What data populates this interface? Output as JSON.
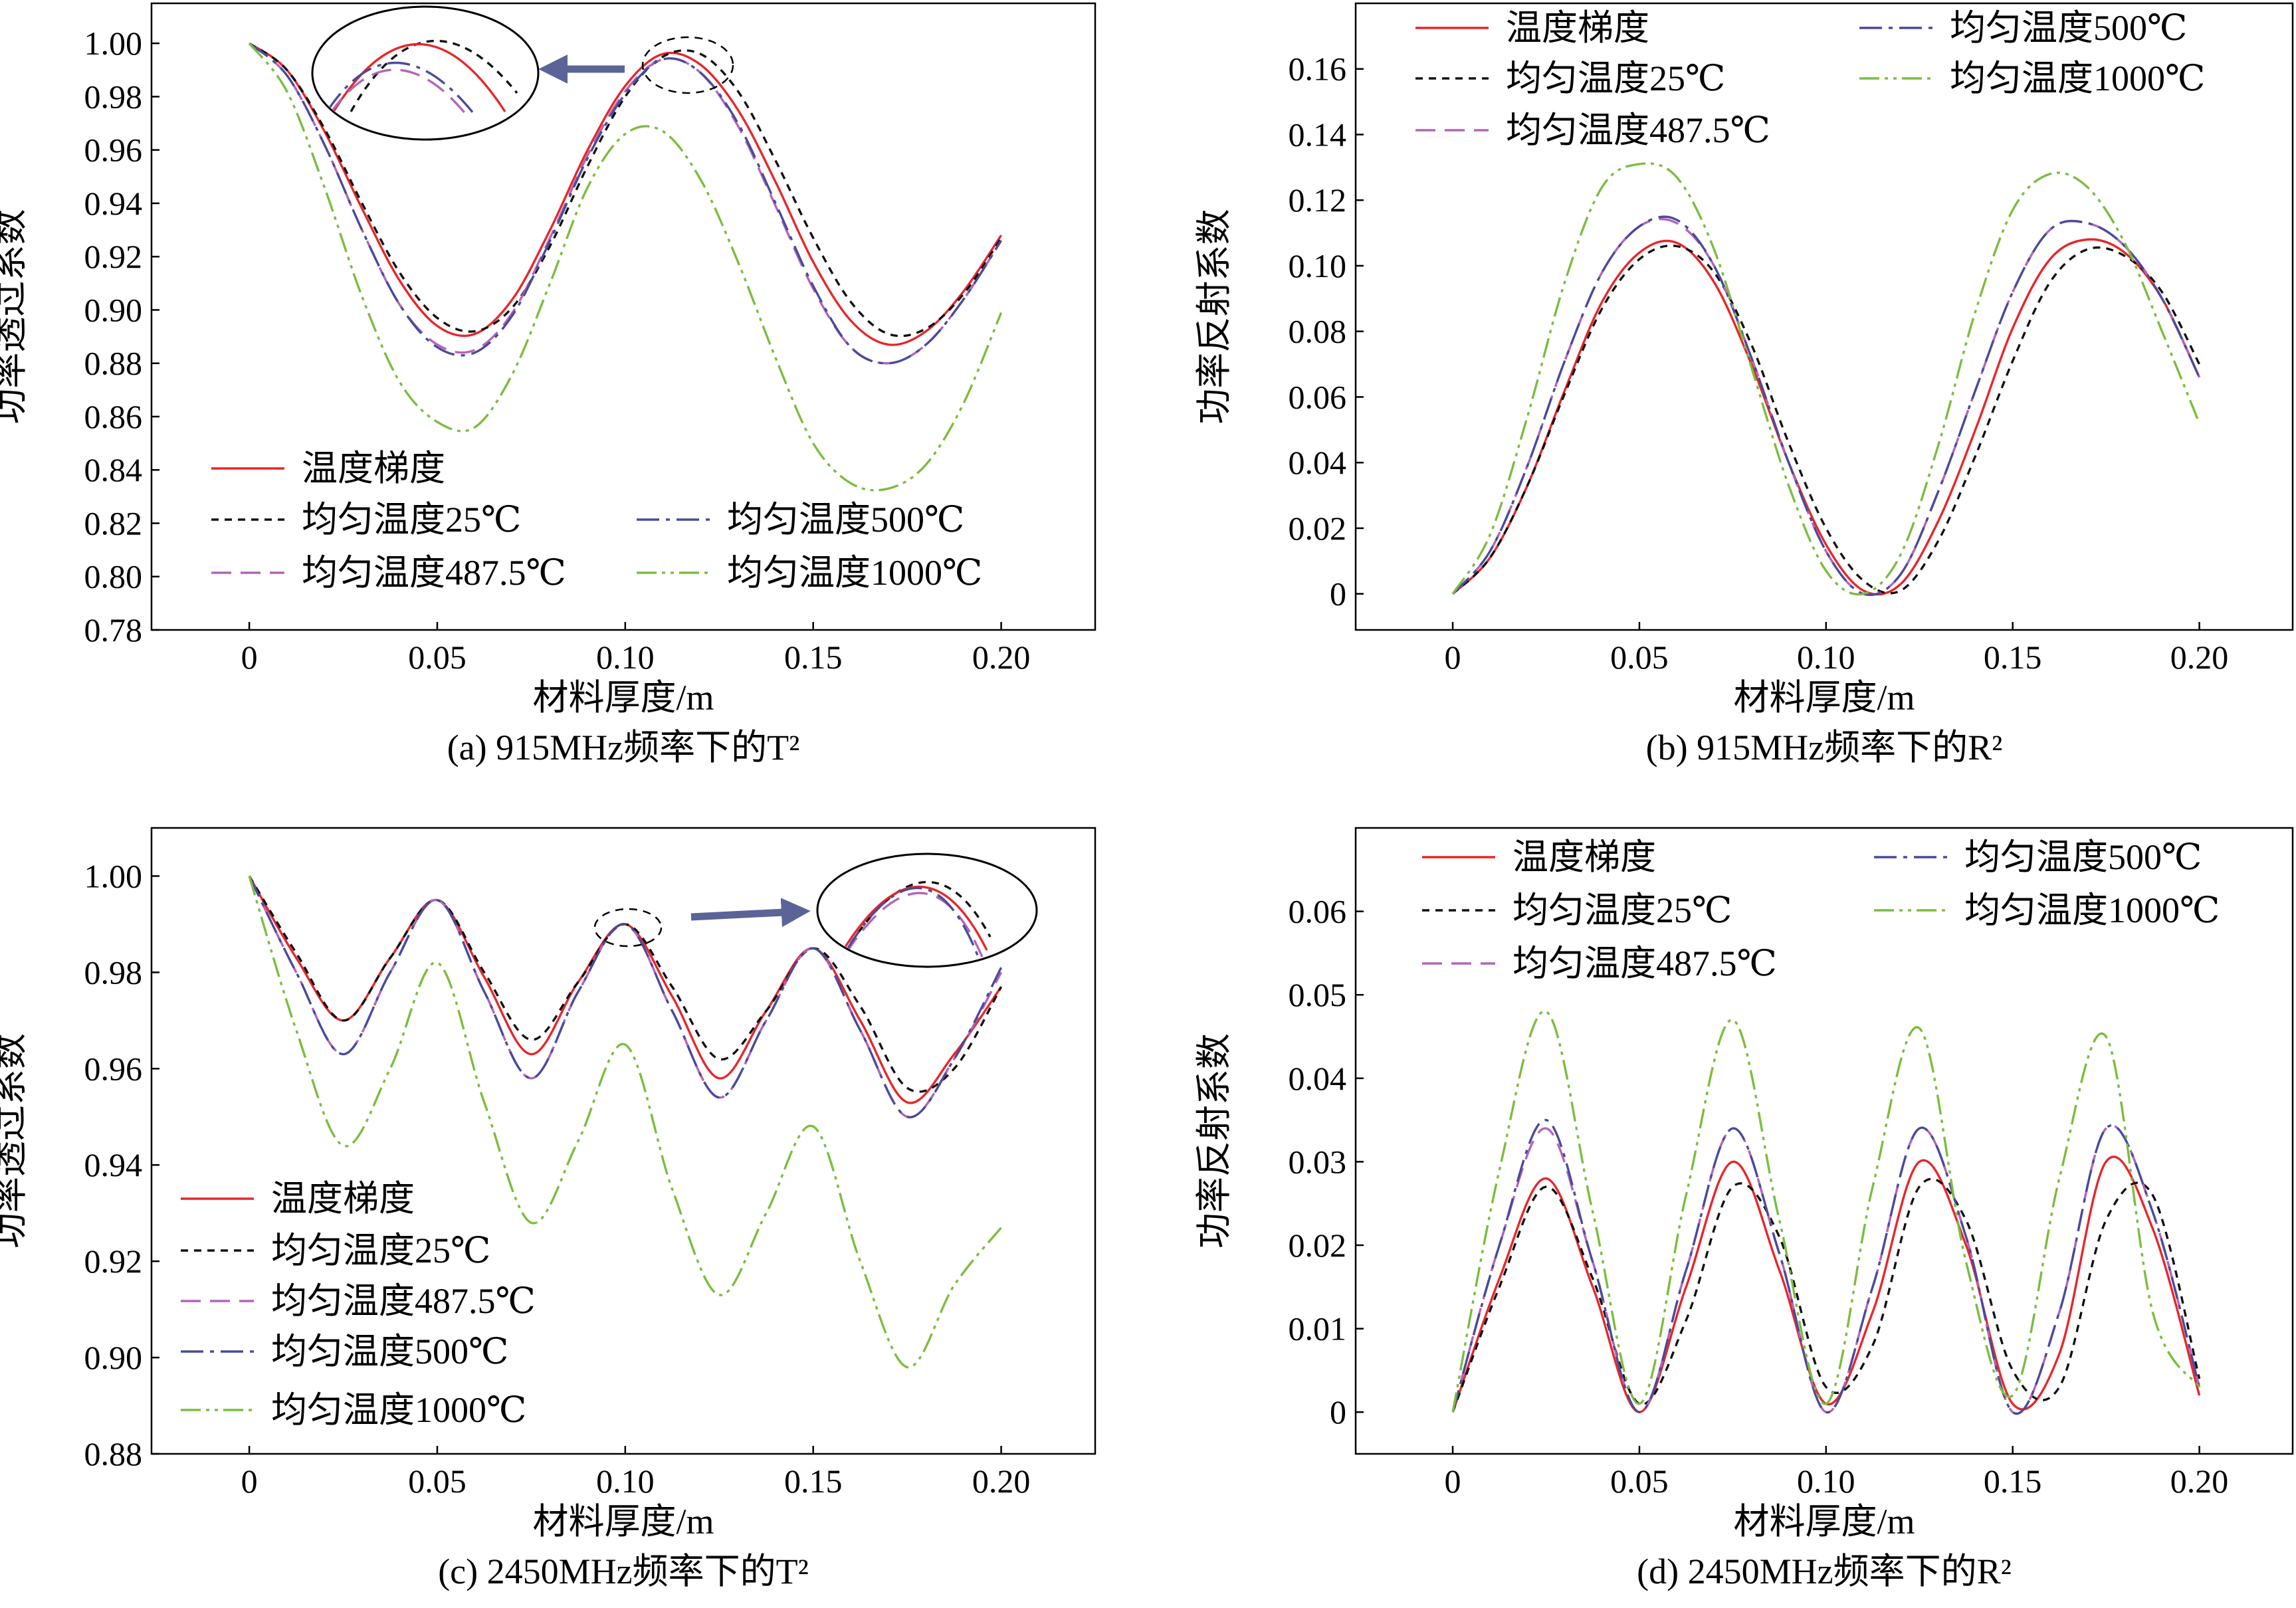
{
  "styles": {
    "gradient": {
      "color": "#e8262a",
      "dash": ""
    },
    "u25": {
      "color": "#111111",
      "dash": "11 9"
    },
    "u487": {
      "color": "#b265b8",
      "dash": "30 14"
    },
    "u500": {
      "color": "#4a4a9c",
      "dash": "34 10 6 10"
    },
    "u1000": {
      "color": "#7bbd3f",
      "dash": "30 8 5 8 5 8"
    },
    "arrow": {
      "color": "#5a6496"
    }
  },
  "chart_data": [
    {
      "id": "a",
      "type": "line",
      "caption": "(a) 915MHz频率下的T²",
      "xlabel": "材料厚度/m",
      "ylabel": "功率透过系数",
      "xlim": [
        -0.026,
        0.225
      ],
      "ylim": [
        0.78,
        1.015
      ],
      "xticks": [
        0,
        0.05,
        0.1,
        0.15,
        0.2
      ],
      "xtick_labels": [
        "0",
        "0.05",
        "0.10",
        "0.15",
        "0.20"
      ],
      "yticks": [
        0.78,
        0.8,
        0.82,
        0.84,
        0.86,
        0.88,
        0.9,
        0.92,
        0.94,
        0.96,
        0.98,
        1.0
      ],
      "ytick_labels": [
        "0.78",
        "0.80",
        "0.82",
        "0.84",
        "0.86",
        "0.88",
        "0.90",
        "0.92",
        "0.94",
        "0.96",
        "0.98",
        "1.00"
      ],
      "x": [
        0,
        0.01,
        0.02,
        0.03,
        0.04,
        0.05,
        0.06,
        0.07,
        0.08,
        0.09,
        0.1,
        0.11,
        0.12,
        0.13,
        0.14,
        0.15,
        0.16,
        0.17,
        0.18,
        0.19,
        0.2
      ],
      "series": [
        {
          "name": "温度梯度",
          "style": "gradient",
          "values": [
            1.0,
            0.99,
            0.967,
            0.938,
            0.911,
            0.894,
            0.891,
            0.904,
            0.93,
            0.96,
            0.984,
            0.996,
            0.992,
            0.975,
            0.948,
            0.918,
            0.896,
            0.887,
            0.892,
            0.907,
            0.928
          ]
        },
        {
          "name": "均匀温度25℃",
          "style": "u25",
          "values": [
            1.0,
            0.99,
            0.968,
            0.94,
            0.914,
            0.897,
            0.892,
            0.901,
            0.924,
            0.954,
            0.98,
            0.995,
            0.996,
            0.982,
            0.956,
            0.927,
            0.903,
            0.891,
            0.893,
            0.906,
            0.927
          ]
        },
        {
          "name": "均匀温度487.5℃",
          "style": "u487",
          "values": [
            1.0,
            0.988,
            0.962,
            0.93,
            0.902,
            0.887,
            0.885,
            0.899,
            0.927,
            0.958,
            0.982,
            0.994,
            0.989,
            0.969,
            0.939,
            0.908,
            0.886,
            0.88,
            0.887,
            0.904,
            0.926
          ]
        },
        {
          "name": "均匀温度500℃",
          "style": "u500",
          "values": [
            1.0,
            0.988,
            0.962,
            0.93,
            0.902,
            0.886,
            0.884,
            0.898,
            0.926,
            0.957,
            0.981,
            0.994,
            0.989,
            0.97,
            0.94,
            0.909,
            0.886,
            0.88,
            0.887,
            0.904,
            0.926
          ]
        },
        {
          "name": "均匀温度1000℃",
          "style": "u1000",
          "values": [
            1.0,
            0.982,
            0.946,
            0.905,
            0.873,
            0.858,
            0.856,
            0.876,
            0.91,
            0.946,
            0.966,
            0.967,
            0.949,
            0.918,
            0.882,
            0.85,
            0.835,
            0.833,
            0.842,
            0.865,
            0.899
          ]
        }
      ],
      "legend": [
        {
          "label": "温度梯度",
          "style": "gradient"
        },
        {
          "label": "均匀温度25℃",
          "style": "u25"
        },
        {
          "label": "均匀温度500℃",
          "style": "u500"
        },
        {
          "label": "均匀温度487.5℃",
          "style": "u487"
        },
        {
          "label": "均匀温度1000℃",
          "style": "u1000"
        }
      ],
      "grid": false
    },
    {
      "id": "b",
      "type": "line",
      "caption": "(b) 915MHz频率下的R²",
      "xlabel": "材料厚度/m",
      "ylabel": "功率反射系数",
      "xlim": [
        -0.026,
        0.225
      ],
      "ylim": [
        -0.011,
        0.18
      ],
      "xticks": [
        0,
        0.05,
        0.1,
        0.15,
        0.2
      ],
      "xtick_labels": [
        "0",
        "0.05",
        "0.10",
        "0.15",
        "0.20"
      ],
      "yticks": [
        0,
        0.02,
        0.04,
        0.06,
        0.08,
        0.1,
        0.12,
        0.14,
        0.16
      ],
      "ytick_labels": [
        "0",
        "0.02",
        "0.04",
        "0.06",
        "0.08",
        "0.10",
        "0.12",
        "0.14",
        "0.16"
      ],
      "x": [
        0,
        0.01,
        0.02,
        0.03,
        0.04,
        0.05,
        0.06,
        0.07,
        0.08,
        0.09,
        0.1,
        0.11,
        0.12,
        0.13,
        0.14,
        0.15,
        0.16,
        0.17,
        0.18,
        0.19,
        0.2
      ],
      "series": [
        {
          "name": "温度梯度",
          "style": "gradient",
          "values": [
            0.0,
            0.011,
            0.033,
            0.062,
            0.089,
            0.104,
            0.107,
            0.095,
            0.07,
            0.04,
            0.015,
            0.001,
            0.003,
            0.022,
            0.05,
            0.081,
            0.102,
            0.108,
            0.104,
            0.09,
            0.066
          ]
        },
        {
          "name": "均匀温度25℃",
          "style": "u25",
          "values": [
            0.0,
            0.011,
            0.033,
            0.061,
            0.087,
            0.102,
            0.106,
            0.098,
            0.076,
            0.046,
            0.02,
            0.004,
            0.001,
            0.016,
            0.042,
            0.071,
            0.095,
            0.105,
            0.103,
            0.092,
            0.07
          ]
        },
        {
          "name": "均匀温度487.5℃",
          "style": "u487",
          "values": [
            0.0,
            0.013,
            0.039,
            0.071,
            0.098,
            0.112,
            0.113,
            0.1,
            0.072,
            0.04,
            0.013,
            0.0,
            0.006,
            0.031,
            0.062,
            0.092,
            0.111,
            0.113,
            0.106,
            0.09,
            0.066
          ]
        },
        {
          "name": "均匀温度500℃",
          "style": "u500",
          "values": [
            0.0,
            0.013,
            0.039,
            0.071,
            0.098,
            0.112,
            0.114,
            0.1,
            0.072,
            0.04,
            0.013,
            0.0,
            0.006,
            0.031,
            0.062,
            0.092,
            0.111,
            0.113,
            0.106,
            0.09,
            0.066
          ]
        },
        {
          "name": "均匀温度1000℃",
          "style": "u1000",
          "values": [
            0.0,
            0.018,
            0.054,
            0.095,
            0.124,
            0.131,
            0.127,
            0.105,
            0.069,
            0.033,
            0.007,
            0.0,
            0.012,
            0.045,
            0.086,
            0.117,
            0.128,
            0.124,
            0.107,
            0.08,
            0.052
          ]
        }
      ],
      "legend": [
        {
          "label": "温度梯度",
          "style": "gradient"
        },
        {
          "label": "均匀温度500℃",
          "style": "u500"
        },
        {
          "label": "均匀温度25℃",
          "style": "u25"
        },
        {
          "label": "均匀温度1000℃",
          "style": "u1000"
        },
        {
          "label": "均匀温度487.5℃",
          "style": "u487"
        }
      ],
      "grid": false
    },
    {
      "id": "c",
      "type": "line",
      "caption": "(c) 2450MHz频率下的T²",
      "xlabel": "材料厚度/m",
      "ylabel": "功率透过系数",
      "xlim": [
        -0.026,
        0.225
      ],
      "ylim": [
        0.88,
        1.01
      ],
      "xticks": [
        0,
        0.05,
        0.1,
        0.15,
        0.2
      ],
      "xtick_labels": [
        "0",
        "0.05",
        "0.10",
        "0.15",
        "0.20"
      ],
      "yticks": [
        0.88,
        0.9,
        0.92,
        0.94,
        0.96,
        0.98,
        1.0
      ],
      "ytick_labels": [
        "0.88",
        "0.90",
        "0.92",
        "0.94",
        "0.96",
        "0.98",
        "1.00"
      ],
      "x": [
        0,
        0.0125,
        0.025,
        0.0375,
        0.05,
        0.0625,
        0.075,
        0.0875,
        0.1,
        0.1125,
        0.125,
        0.1375,
        0.15,
        0.1625,
        0.175,
        0.1875,
        0.2
      ],
      "series": [
        {
          "name": "温度梯度",
          "style": "gradient",
          "values": [
            1.0,
            0.983,
            0.97,
            0.983,
            0.995,
            0.979,
            0.963,
            0.978,
            0.99,
            0.975,
            0.958,
            0.972,
            0.985,
            0.97,
            0.953,
            0.963,
            0.977
          ]
        },
        {
          "name": "均匀温度25℃",
          "style": "u25",
          "values": [
            1.0,
            0.984,
            0.97,
            0.983,
            0.995,
            0.98,
            0.966,
            0.978,
            0.99,
            0.977,
            0.962,
            0.972,
            0.985,
            0.973,
            0.956,
            0.96,
            0.977
          ]
        },
        {
          "name": "均匀温度487.5℃",
          "style": "u487",
          "values": [
            1.0,
            0.98,
            0.963,
            0.98,
            0.995,
            0.976,
            0.958,
            0.976,
            0.99,
            0.972,
            0.954,
            0.97,
            0.985,
            0.968,
            0.95,
            0.962,
            0.98
          ]
        },
        {
          "name": "均匀温度500℃",
          "style": "u500",
          "values": [
            1.0,
            0.98,
            0.963,
            0.98,
            0.995,
            0.976,
            0.958,
            0.976,
            0.99,
            0.972,
            0.954,
            0.97,
            0.985,
            0.968,
            0.95,
            0.962,
            0.981
          ]
        },
        {
          "name": "均匀温度1000℃",
          "style": "u1000",
          "values": [
            1.0,
            0.968,
            0.944,
            0.96,
            0.982,
            0.953,
            0.928,
            0.945,
            0.965,
            0.935,
            0.913,
            0.93,
            0.948,
            0.92,
            0.898,
            0.915,
            0.927
          ]
        }
      ],
      "legend": [
        {
          "label": "温度梯度",
          "style": "gradient"
        },
        {
          "label": "均匀温度25℃",
          "style": "u25"
        },
        {
          "label": "均匀温度487.5℃",
          "style": "u487"
        },
        {
          "label": "均匀温度500℃",
          "style": "u500"
        },
        {
          "label": "均匀温度1000℃",
          "style": "u1000"
        }
      ],
      "grid": false
    },
    {
      "id": "d",
      "type": "line",
      "caption": "(d) 2450MHz频率下的R²",
      "xlabel": "材料厚度/m",
      "ylabel": "功率反射系数",
      "xlim": [
        -0.026,
        0.225
      ],
      "ylim": [
        -0.005,
        0.07
      ],
      "xticks": [
        0,
        0.05,
        0.1,
        0.15,
        0.2
      ],
      "xtick_labels": [
        "0",
        "0.05",
        "0.10",
        "0.15",
        "0.20"
      ],
      "yticks": [
        0,
        0.01,
        0.02,
        0.03,
        0.04,
        0.05,
        0.06
      ],
      "ytick_labels": [
        "0",
        "0.01",
        "0.02",
        "0.03",
        "0.04",
        "0.05",
        "0.06"
      ],
      "x": [
        0,
        0.0125,
        0.025,
        0.0375,
        0.05,
        0.0625,
        0.075,
        0.0875,
        0.1,
        0.1125,
        0.125,
        0.1375,
        0.15,
        0.1625,
        0.175,
        0.1875,
        0.2
      ],
      "series": [
        {
          "name": "温度梯度",
          "style": "gradient",
          "values": [
            0.0,
            0.016,
            0.028,
            0.015,
            0.0,
            0.015,
            0.03,
            0.017,
            0.001,
            0.012,
            0.03,
            0.02,
            0.001,
            0.007,
            0.03,
            0.022,
            0.002
          ]
        },
        {
          "name": "均匀温度25℃",
          "style": "u25",
          "values": [
            0.0,
            0.015,
            0.027,
            0.016,
            0.001,
            0.011,
            0.027,
            0.021,
            0.003,
            0.008,
            0.027,
            0.023,
            0.005,
            0.003,
            0.023,
            0.026,
            0.004
          ]
        },
        {
          "name": "均匀温度487.5℃",
          "style": "u487",
          "values": [
            0.0,
            0.02,
            0.034,
            0.018,
            0.0,
            0.017,
            0.034,
            0.019,
            0.0,
            0.015,
            0.034,
            0.021,
            0.0,
            0.012,
            0.034,
            0.024,
            0.003
          ]
        },
        {
          "name": "均匀温度500℃",
          "style": "u500",
          "values": [
            0.0,
            0.02,
            0.035,
            0.018,
            0.0,
            0.017,
            0.034,
            0.019,
            0.0,
            0.015,
            0.034,
            0.021,
            0.0,
            0.012,
            0.034,
            0.024,
            0.003
          ]
        },
        {
          "name": "均匀温度1000℃",
          "style": "u1000",
          "values": [
            0.0,
            0.029,
            0.048,
            0.024,
            0.001,
            0.026,
            0.047,
            0.023,
            0.001,
            0.027,
            0.046,
            0.018,
            0.002,
            0.028,
            0.045,
            0.012,
            0.003
          ]
        }
      ],
      "legend": [
        {
          "label": "温度梯度",
          "style": "gradient"
        },
        {
          "label": "均匀温度500℃",
          "style": "u500"
        },
        {
          "label": "均匀温度25℃",
          "style": "u25"
        },
        {
          "label": "均匀温度1000℃",
          "style": "u1000"
        },
        {
          "label": "均匀温度487.5℃",
          "style": "u487"
        }
      ],
      "grid": false
    }
  ]
}
